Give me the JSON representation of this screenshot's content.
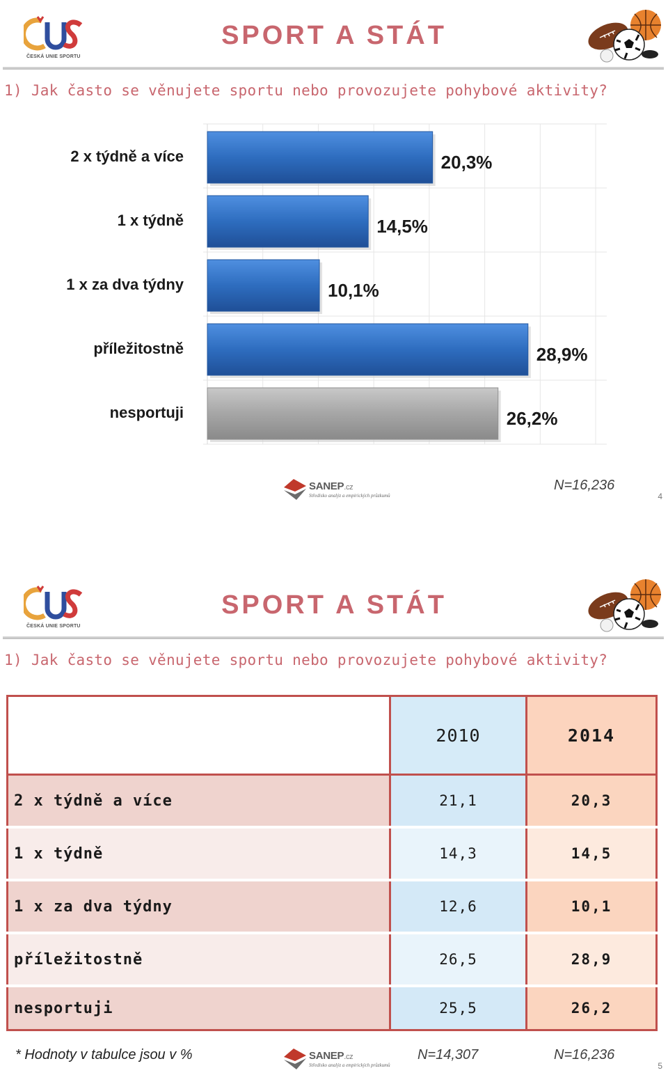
{
  "slides": [
    {
      "logo_caption": "ČESKÁ UNIE SPORTU",
      "title": "SPORT A STÁT",
      "question": "1) Jak často se věnujete sportu nebo provozujete pohybové aktivity?",
      "sanep": {
        "name": "SANEP",
        "suffix": ".cz",
        "tagline": "Středisko analýz a empirických průzkumů"
      },
      "n_label": "N=16,236",
      "page": "4"
    },
    {
      "logo_caption": "ČESKÁ UNIE SPORTU",
      "title": "SPORT A STÁT",
      "question": "1) Jak často se věnujete sportu nebo provozujete pohybové aktivity?",
      "table": {
        "headers": [
          "",
          "2010",
          "2014"
        ],
        "rows": [
          {
            "label": "2 x týdně a více",
            "v2010": "21,1",
            "v2014": "20,3"
          },
          {
            "label": "1 x týdně",
            "v2010": "14,3",
            "v2014": "14,5"
          },
          {
            "label": "1 x za dva týdny",
            "v2010": "12,6",
            "v2014": "10,1"
          },
          {
            "label": "příležitostně",
            "v2010": "26,5",
            "v2014": "28,9"
          },
          {
            "label": "nesportuji",
            "v2010": "25,5",
            "v2014": "26,2"
          }
        ]
      },
      "footnote": "* Hodnoty v tabulce jsou v %",
      "sanep": {
        "name": "SANEP",
        "suffix": ".cz",
        "tagline": "Středisko analýz a empirických průzkumů"
      },
      "n_label_2010": "N=14,307",
      "n_label_2014": "N=16,236",
      "page": "5"
    }
  ],
  "chart_data": {
    "type": "bar",
    "orientation": "horizontal",
    "categories": [
      "2 x týdně a více",
      "1 x týdně",
      "1 x za dva týdny",
      "příležitostně",
      "nesportuji"
    ],
    "values": [
      20.3,
      14.5,
      10.1,
      28.9,
      26.2
    ],
    "value_labels": [
      "20,3%",
      "14,5%",
      "10,1%",
      "28,9%",
      "26,2%"
    ],
    "bar_colors": [
      "#2e6dbf",
      "#2e6dbf",
      "#2e6dbf",
      "#2e6dbf",
      "#a6a6a6"
    ],
    "title": "",
    "xlabel": "",
    "ylabel": "",
    "xlim": [
      0,
      36
    ],
    "grid": true
  },
  "colors": {
    "title": "#c8666e",
    "table_border": "#c0504d",
    "bar_blue": "#2e6dbf",
    "bar_gray": "#a6a6a6"
  }
}
